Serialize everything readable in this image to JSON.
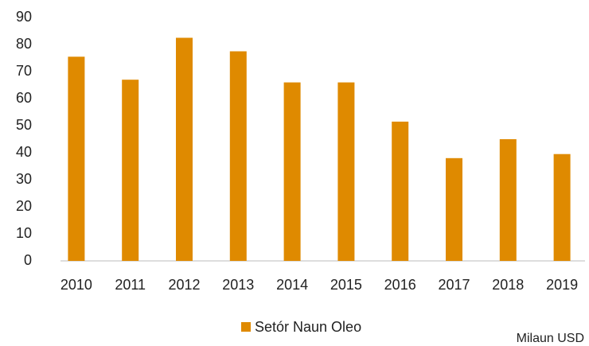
{
  "chart_data": {
    "type": "bar",
    "categories": [
      "2010",
      "2011",
      "2012",
      "2013",
      "2014",
      "2015",
      "2016",
      "2017",
      "2018",
      "2019"
    ],
    "series": [
      {
        "name": "Setór Naun Oleo",
        "color": "#df8a00",
        "values": [
          75.5,
          67,
          82.5,
          77.5,
          66,
          66,
          51.5,
          38,
          45,
          39.5
        ]
      }
    ],
    "ylim": [
      0,
      90
    ],
    "yticks": [
      0,
      10,
      20,
      30,
      40,
      50,
      60,
      70,
      80,
      90
    ],
    "grid": false,
    "legend": "bottom",
    "annotation": "Milaun USD"
  }
}
